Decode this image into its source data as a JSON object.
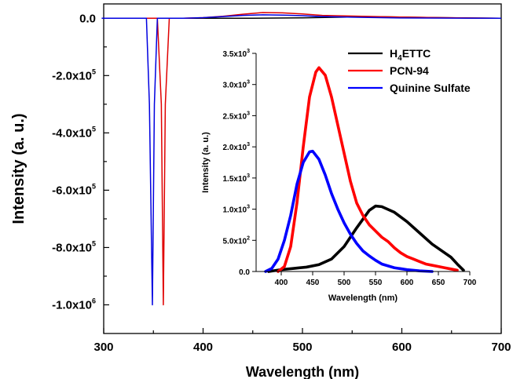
{
  "chart_data": [
    {
      "type": "line",
      "xlabel": "Wavelength (nm)",
      "ylabel": "Intensity (a. u.)",
      "xlim": [
        300,
        700
      ],
      "ylim": [
        -1100000,
        50000
      ],
      "x_ticks": [
        300,
        400,
        500,
        600,
        700
      ],
      "x_tick_labels": [
        "300",
        "400",
        "500",
        "600",
        "700"
      ],
      "y_ticks": [
        0,
        -200000,
        -400000,
        -600000,
        -800000,
        -1000000
      ],
      "y_tick_labels": [
        "0.0",
        "-2.0x10",
        "-4.0x10",
        "-6.0x10",
        "-8.0x10",
        "-1.0x10"
      ],
      "y_tick_exponents": [
        "",
        "5",
        "5",
        "5",
        "5",
        "6"
      ],
      "series": [
        {
          "name": "H4ETTC",
          "color": "#000000",
          "points": [
            [
              298,
              0
            ],
            [
              340,
              0
            ],
            [
              400,
              0
            ],
            [
              450,
              200
            ],
            [
              500,
              1500
            ],
            [
              545,
              4000
            ],
            [
              560,
              6000
            ],
            [
              580,
              5000
            ],
            [
              610,
              3500
            ],
            [
              640,
              2000
            ],
            [
              670,
              800
            ],
            [
              700,
              0
            ]
          ]
        },
        {
          "name": "PCN-94",
          "color": "#e00000",
          "points": [
            [
              298,
              0
            ],
            [
              354,
              0
            ],
            [
              358,
              -300000
            ],
            [
              360,
              -1000000
            ],
            [
              362,
              -300000
            ],
            [
              366,
              0
            ],
            [
              380,
              0
            ],
            [
              400,
              2000
            ],
            [
              420,
              7000
            ],
            [
              440,
              14000
            ],
            [
              460,
              20000
            ],
            [
              480,
              19000
            ],
            [
              500,
              15000
            ],
            [
              520,
              10000
            ],
            [
              560,
              7000
            ],
            [
              600,
              4000
            ],
            [
              640,
              2000
            ],
            [
              700,
              0
            ]
          ]
        },
        {
          "name": "Quinine Sulfate",
          "color": "#0000e0",
          "points": [
            [
              298,
              0
            ],
            [
              343,
              0
            ],
            [
              346,
              -300000
            ],
            [
              349,
              -1000000
            ],
            [
              351,
              -300000
            ],
            [
              354,
              0
            ],
            [
              380,
              0
            ],
            [
              400,
              2000
            ],
            [
              420,
              6000
            ],
            [
              440,
              10000
            ],
            [
              460,
              12000
            ],
            [
              480,
              11000
            ],
            [
              500,
              9000
            ],
            [
              520,
              6000
            ],
            [
              560,
              3000
            ],
            [
              600,
              1000
            ],
            [
              650,
              300
            ],
            [
              700,
              0
            ]
          ]
        }
      ]
    },
    {
      "type": "line",
      "xlabel": "Wavelength (nm)",
      "ylabel": "Intensity (a. u.)",
      "xlim": [
        360,
        700
      ],
      "ylim": [
        0,
        3500
      ],
      "x_ticks": [
        400,
        450,
        500,
        550,
        600,
        650,
        700
      ],
      "x_tick_labels": [
        "400",
        "450",
        "500",
        "550",
        "600",
        "650",
        "700"
      ],
      "y_ticks": [
        0,
        500,
        1000,
        1500,
        2000,
        2500,
        3000,
        3500
      ],
      "y_tick_labels": [
        "0.0",
        "5.0x10",
        "1.0x10",
        "1.5x10",
        "2.0x10",
        "2.5x10",
        "3.0x10",
        "3.5x10"
      ],
      "y_tick_exponents": [
        "",
        "2",
        "3",
        "3",
        "3",
        "3",
        "3",
        "3"
      ],
      "series": [
        {
          "name": "H4ETTC",
          "color": "#000000",
          "points": [
            [
              380,
              0
            ],
            [
              400,
              30
            ],
            [
              420,
              50
            ],
            [
              440,
              70
            ],
            [
              460,
              110
            ],
            [
              480,
              200
            ],
            [
              500,
              400
            ],
            [
              520,
              700
            ],
            [
              540,
              980
            ],
            [
              550,
              1050
            ],
            [
              560,
              1040
            ],
            [
              580,
              950
            ],
            [
              600,
              800
            ],
            [
              620,
              620
            ],
            [
              640,
              440
            ],
            [
              660,
              300
            ],
            [
              670,
              230
            ],
            [
              680,
              120
            ],
            [
              690,
              20
            ]
          ]
        },
        {
          "name": "PCN-94",
          "color": "#ff0000",
          "points": [
            [
              395,
              0
            ],
            [
              405,
              80
            ],
            [
              415,
              400
            ],
            [
              425,
              1100
            ],
            [
              435,
              2000
            ],
            [
              445,
              2800
            ],
            [
              455,
              3200
            ],
            [
              460,
              3270
            ],
            [
              470,
              3150
            ],
            [
              480,
              2800
            ],
            [
              490,
              2350
            ],
            [
              500,
              1900
            ],
            [
              510,
              1450
            ],
            [
              520,
              1100
            ],
            [
              530,
              900
            ],
            [
              540,
              750
            ],
            [
              550,
              650
            ],
            [
              560,
              550
            ],
            [
              570,
              480
            ],
            [
              580,
              380
            ],
            [
              590,
              300
            ],
            [
              600,
              240
            ],
            [
              610,
              200
            ],
            [
              620,
              160
            ],
            [
              630,
              120
            ],
            [
              640,
              100
            ],
            [
              650,
              80
            ],
            [
              660,
              60
            ],
            [
              670,
              40
            ],
            [
              680,
              20
            ]
          ]
        },
        {
          "name": "Quinine Sulfate",
          "color": "#0000ff",
          "points": [
            [
              375,
              0
            ],
            [
              385,
              50
            ],
            [
              395,
              200
            ],
            [
              405,
              500
            ],
            [
              415,
              900
            ],
            [
              425,
              1400
            ],
            [
              435,
              1750
            ],
            [
              445,
              1920
            ],
            [
              450,
              1930
            ],
            [
              460,
              1800
            ],
            [
              470,
              1550
            ],
            [
              480,
              1250
            ],
            [
              490,
              1000
            ],
            [
              500,
              780
            ],
            [
              510,
              600
            ],
            [
              520,
              450
            ],
            [
              530,
              330
            ],
            [
              540,
              250
            ],
            [
              550,
              180
            ],
            [
              560,
              120
            ],
            [
              580,
              60
            ],
            [
              600,
              30
            ],
            [
              620,
              10
            ],
            [
              640,
              0
            ]
          ]
        }
      ]
    }
  ],
  "legend": {
    "items": [
      {
        "base": "H",
        "sub": "4",
        "rest": "ETTC",
        "color": "#000000"
      },
      {
        "base": "PCN-94",
        "sub": "",
        "rest": "",
        "color": "#ff0000"
      },
      {
        "base": "Quinine Sulfate",
        "sub": "",
        "rest": "",
        "color": "#0000ff"
      }
    ]
  }
}
